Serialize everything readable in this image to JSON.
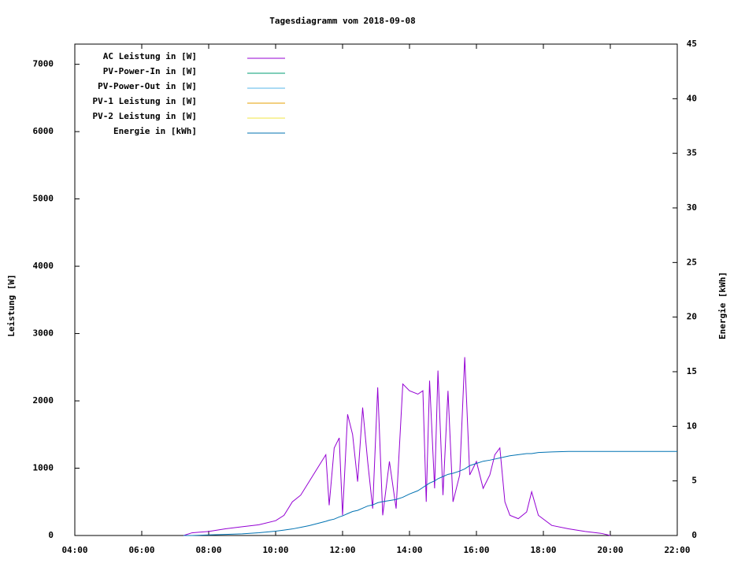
{
  "chart_data": {
    "type": "line",
    "title": "Tagesdiagramm vom 2018-09-08",
    "y_label": "Leistung [W]",
    "y2_label": "Energie [kWh]",
    "legend": "top-left",
    "xlim": [
      4,
      22
    ],
    "xticks": [
      {
        "value": 4,
        "label": "04:00"
      },
      {
        "value": 6,
        "label": "06:00"
      },
      {
        "value": 8,
        "label": "08:00"
      },
      {
        "value": 10,
        "label": "10:00"
      },
      {
        "value": 12,
        "label": "12:00"
      },
      {
        "value": 14,
        "label": "14:00"
      },
      {
        "value": 16,
        "label": "16:00"
      },
      {
        "value": 18,
        "label": "18:00"
      },
      {
        "value": 20,
        "label": "20:00"
      },
      {
        "value": 22,
        "label": "22:00"
      }
    ],
    "ylim": [
      0,
      7300
    ],
    "yticks": [
      0,
      1000,
      2000,
      3000,
      4000,
      5000,
      6000,
      7000
    ],
    "y2lim": [
      0,
      45
    ],
    "y2ticks": [
      0,
      5,
      10,
      15,
      20,
      25,
      30,
      35,
      40,
      45
    ],
    "x": [
      7.25,
      7.5,
      8,
      8.5,
      9,
      9.5,
      10,
      10.25,
      10.5,
      10.75,
      11,
      11.25,
      11.5,
      11.6,
      11.75,
      11.9,
      12,
      12.15,
      12.3,
      12.45,
      12.6,
      12.75,
      12.9,
      13.05,
      13.2,
      13.4,
      13.6,
      13.8,
      14,
      14.25,
      14.4,
      14.5,
      14.6,
      14.75,
      14.85,
      15,
      15.15,
      15.3,
      15.5,
      15.65,
      15.8,
      16,
      16.2,
      16.4,
      16.55,
      16.7,
      16.85,
      17,
      17.25,
      17.5,
      17.65,
      17.85,
      18.25,
      18.75,
      19.25,
      19.75,
      20,
      20.5,
      22
    ],
    "series": [
      {
        "name": "AC Leistung in [W]",
        "color": "#9400d3",
        "values": [
          0,
          40,
          60,
          100,
          130,
          160,
          220,
          300,
          500,
          600,
          800,
          1000,
          1200,
          450,
          1300,
          1450,
          300,
          1800,
          1500,
          800,
          1900,
          1100,
          400,
          2200,
          300,
          1100,
          400,
          2250,
          2150,
          2100,
          2150,
          500,
          2300,
          700,
          2450,
          600,
          2150,
          500,
          900,
          2650,
          900,
          1100,
          700,
          900,
          1200,
          1300,
          500,
          300,
          250,
          350,
          650,
          300,
          150,
          100,
          60,
          30,
          0,
          null,
          null
        ]
      },
      {
        "name": "PV-Power-In in [W]",
        "color": "#009e73",
        "values": [
          null,
          null,
          null,
          null,
          null,
          null,
          null,
          null,
          null,
          null,
          null,
          null,
          null,
          null,
          null,
          null,
          null,
          null,
          null,
          null,
          null,
          null,
          null,
          null,
          null,
          null,
          null,
          null,
          null,
          null,
          null,
          null,
          null,
          null,
          null,
          null,
          null,
          null,
          null,
          null,
          null,
          null,
          null,
          null,
          null,
          null,
          null,
          null,
          null,
          null,
          null,
          null,
          null,
          null,
          null,
          null,
          null,
          null,
          null
        ]
      },
      {
        "name": "PV-Power-Out in [W]",
        "color": "#56b4e9",
        "values": [
          null,
          null,
          null,
          null,
          null,
          null,
          null,
          null,
          null,
          null,
          null,
          null,
          null,
          null,
          null,
          null,
          null,
          null,
          null,
          null,
          null,
          null,
          null,
          null,
          null,
          null,
          null,
          null,
          null,
          null,
          null,
          null,
          null,
          null,
          null,
          null,
          null,
          null,
          null,
          null,
          null,
          null,
          null,
          null,
          null,
          null,
          null,
          null,
          null,
          null,
          null,
          null,
          null,
          null,
          null,
          null,
          null,
          null,
          null
        ]
      },
      {
        "name": "PV-1 Leistung in [W]",
        "color": "#e69f00",
        "values": [
          null,
          null,
          null,
          null,
          null,
          null,
          null,
          null,
          null,
          null,
          null,
          null,
          null,
          null,
          null,
          null,
          null,
          null,
          null,
          null,
          null,
          null,
          null,
          null,
          null,
          null,
          null,
          null,
          null,
          null,
          null,
          null,
          null,
          null,
          null,
          null,
          null,
          null,
          null,
          null,
          null,
          null,
          null,
          null,
          null,
          null,
          null,
          null,
          null,
          null,
          null,
          null,
          null,
          null,
          null,
          null,
          null,
          null,
          null
        ]
      },
      {
        "name": "PV-2 Leistung in [W]",
        "color": "#f0e442",
        "values": [
          null,
          null,
          null,
          null,
          null,
          null,
          null,
          null,
          null,
          null,
          null,
          null,
          null,
          null,
          null,
          null,
          null,
          null,
          null,
          null,
          null,
          null,
          null,
          null,
          null,
          null,
          null,
          null,
          null,
          null,
          null,
          null,
          null,
          null,
          null,
          null,
          null,
          null,
          null,
          null,
          null,
          null,
          null,
          null,
          null,
          null,
          null,
          null,
          null,
          null,
          null,
          null,
          null,
          null,
          null,
          null,
          null,
          null,
          null
        ]
      },
      {
        "name": "Energie in [kWh]",
        "color": "#0072b2",
        "axis": "y2",
        "values": [
          0,
          0,
          0.05,
          0.1,
          0.15,
          0.25,
          0.4,
          0.5,
          0.6,
          0.75,
          0.9,
          1.1,
          1.3,
          1.4,
          1.5,
          1.7,
          1.8,
          2.0,
          2.2,
          2.3,
          2.5,
          2.7,
          2.8,
          3.0,
          3.1,
          3.2,
          3.3,
          3.5,
          3.8,
          4.1,
          4.4,
          4.6,
          4.8,
          5.0,
          5.2,
          5.4,
          5.6,
          5.7,
          5.9,
          6.1,
          6.4,
          6.6,
          6.8,
          6.9,
          7.0,
          7.1,
          7.2,
          7.3,
          7.4,
          7.5,
          7.5,
          7.6,
          7.65,
          7.7,
          7.7,
          7.7,
          7.7,
          7.7,
          7.7
        ]
      }
    ]
  }
}
